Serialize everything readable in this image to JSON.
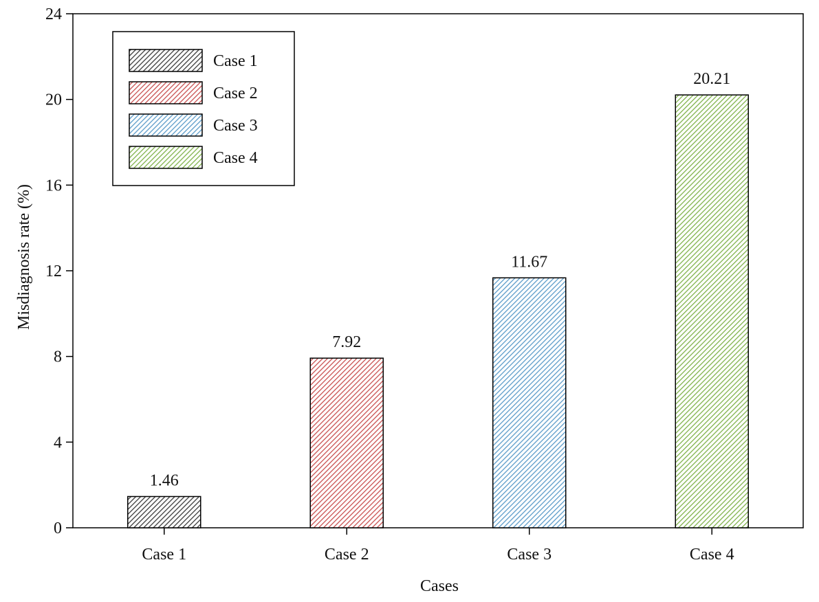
{
  "chart_data": {
    "type": "bar",
    "title": "",
    "xlabel": "Cases",
    "ylabel": "Misdiagnosis rate (%)",
    "categories": [
      "Case 1",
      "Case 2",
      "Case 3",
      "Case 4"
    ],
    "values": [
      1.46,
      7.92,
      11.67,
      20.21
    ],
    "value_labels": [
      "1.46",
      "7.92",
      "11.67",
      "20.21"
    ],
    "ylim": [
      0,
      24
    ],
    "yticks": [
      0,
      4,
      8,
      12,
      16,
      20,
      24
    ],
    "ytick_labels": [
      "0",
      "4",
      "8",
      "12",
      "16",
      "20",
      "24"
    ],
    "grid": false,
    "legend": {
      "placement": "top-left",
      "entries": [
        "Case 1",
        "Case 2",
        "Case 3",
        "Case 4"
      ]
    },
    "bar_colors": [
      "#3a3a3a",
      "#c94f4f",
      "#5b9bc9",
      "#7fb24a"
    ],
    "bar_fill_style": "diagonal-hatch"
  }
}
